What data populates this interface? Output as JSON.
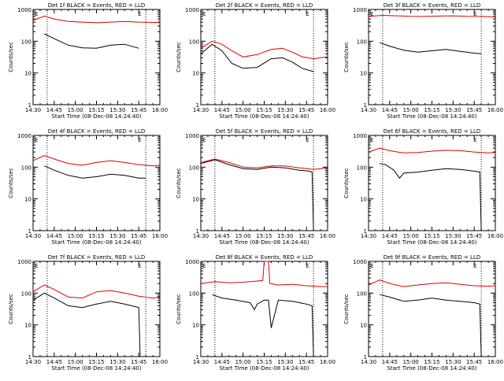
{
  "colors": {
    "events": "#000000",
    "lld": "#e00000",
    "background": "#ffffff"
  },
  "chart_data": [
    {
      "type": "line",
      "title": "Det 1f BLACK = Events, RED = LLD",
      "xlabel": "Start Time (08-Dec-08 14:24:40)",
      "ylabel": "Counts/sec",
      "yscale": "log",
      "ylim": [
        1,
        1000
      ],
      "xlim": [
        "14:30",
        "16:00"
      ],
      "x_ticks": [
        "14:30",
        "14:45",
        "15:00",
        "15:15",
        "15:30",
        "15:45",
        "16:00"
      ],
      "y_ticks": [
        "1",
        "10",
        "100",
        "1000"
      ],
      "markers": [
        "E",
        "E"
      ],
      "vlines": [
        "14:40",
        "15:50"
      ],
      "series": [
        {
          "name": "Events",
          "x": [
            "14:38",
            "14:45",
            "14:55",
            "15:05",
            "15:15",
            "15:25",
            "15:35",
            "15:45"
          ],
          "values": [
            170,
            120,
            75,
            62,
            60,
            75,
            80,
            60
          ]
        },
        {
          "name": "LLD",
          "x": [
            "14:30",
            "14:38",
            "14:45",
            "14:55",
            "15:05",
            "15:15",
            "15:25",
            "15:35",
            "15:45",
            "15:55",
            "16:00"
          ],
          "values": [
            450,
            620,
            500,
            420,
            400,
            380,
            400,
            420,
            400,
            390,
            390
          ]
        }
      ]
    },
    {
      "type": "line",
      "title": "Det 2f BLACK = Events, RED = LLD",
      "xlabel": "Start Time (08-Dec-08 14:24:40)",
      "ylabel": "Counts/sec",
      "yscale": "log",
      "ylim": [
        1,
        1000
      ],
      "xlim": [
        "14:30",
        "16:00"
      ],
      "x_ticks": [
        "14:30",
        "14:45",
        "15:00",
        "15:15",
        "15:30",
        "15:45",
        "16:00"
      ],
      "y_ticks": [
        "1",
        "10",
        "100",
        "1000"
      ],
      "markers": [
        "E",
        "E"
      ],
      "vlines": [
        "14:40",
        "15:50"
      ],
      "series": [
        {
          "name": "Events",
          "x": [
            "14:30",
            "14:38",
            "14:45",
            "14:52",
            "15:00",
            "15:10",
            "15:20",
            "15:28",
            "15:35",
            "15:42",
            "15:50"
          ],
          "values": [
            40,
            80,
            50,
            20,
            14,
            15,
            28,
            30,
            22,
            14,
            11
          ]
        },
        {
          "name": "LLD",
          "x": [
            "14:30",
            "14:38",
            "14:45",
            "14:52",
            "15:00",
            "15:10",
            "15:20",
            "15:28",
            "15:35",
            "15:42",
            "15:50",
            "16:00"
          ],
          "values": [
            60,
            100,
            80,
            50,
            32,
            38,
            55,
            60,
            45,
            32,
            28,
            32
          ]
        }
      ]
    },
    {
      "type": "line",
      "title": "Det 3f BLACK = Events, RED = LLD",
      "xlabel": "Start Time (08-Dec-08 14:24:40)",
      "ylabel": "Counts/sec",
      "yscale": "log",
      "ylim": [
        1,
        1000
      ],
      "xlim": [
        "14:30",
        "16:00"
      ],
      "x_ticks": [
        "14:30",
        "14:45",
        "15:00",
        "15:15",
        "15:30",
        "15:45",
        "16:00"
      ],
      "y_ticks": [
        "1",
        "10",
        "100",
        "1000"
      ],
      "markers": [
        "E",
        "E"
      ],
      "vlines": [
        "14:40",
        "15:50"
      ],
      "series": [
        {
          "name": "Events",
          "x": [
            "14:38",
            "14:45",
            "14:55",
            "15:05",
            "15:15",
            "15:25",
            "15:35",
            "15:45",
            "15:50"
          ],
          "values": [
            90,
            70,
            52,
            45,
            50,
            55,
            48,
            42,
            40
          ]
        },
        {
          "name": "LLD",
          "x": [
            "14:30",
            "14:40",
            "14:50",
            "15:00",
            "15:10",
            "15:20",
            "15:30",
            "15:40",
            "15:50",
            "16:00"
          ],
          "values": [
            600,
            650,
            630,
            610,
            600,
            620,
            630,
            610,
            600,
            580
          ]
        }
      ]
    },
    {
      "type": "line",
      "title": "Det 4f BLACK = Events, RED = LLD",
      "xlabel": "Start Time (08-Dec-08 14:24:40)",
      "ylabel": "Counts/sec",
      "yscale": "log",
      "ylim": [
        1,
        1000
      ],
      "xlim": [
        "14:30",
        "16:00"
      ],
      "x_ticks": [
        "14:30",
        "14:45",
        "15:00",
        "15:15",
        "15:30",
        "15:45",
        "16:00"
      ],
      "y_ticks": [
        "1",
        "10",
        "100",
        "1000"
      ],
      "markers": [
        "E",
        "E"
      ],
      "vlines": [
        "14:40",
        "15:50"
      ],
      "series": [
        {
          "name": "Events",
          "x": [
            "14:38",
            "14:45",
            "14:55",
            "15:05",
            "15:15",
            "15:25",
            "15:35",
            "15:45",
            "15:50"
          ],
          "values": [
            110,
            80,
            55,
            45,
            50,
            60,
            55,
            45,
            45
          ]
        },
        {
          "name": "LLD",
          "x": [
            "14:30",
            "14:38",
            "14:45",
            "14:55",
            "15:05",
            "15:15",
            "15:25",
            "15:35",
            "15:45",
            "15:55",
            "16:00"
          ],
          "values": [
            160,
            230,
            180,
            130,
            115,
            140,
            160,
            140,
            120,
            110,
            115
          ]
        }
      ]
    },
    {
      "type": "line",
      "title": "Det 5f BLACK = Events, RED = LLD",
      "xlabel": "Start Time (08-Dec-08 14:24:40)",
      "ylabel": "Counts/sec",
      "yscale": "log",
      "ylim": [
        1,
        1000
      ],
      "xlim": [
        "14:30",
        "16:00"
      ],
      "x_ticks": [
        "14:30",
        "14:45",
        "15:00",
        "15:15",
        "15:30",
        "15:45",
        "16:00"
      ],
      "y_ticks": [
        "1",
        "10",
        "100",
        "1000"
      ],
      "markers": [
        "E",
        "E"
      ],
      "vlines": [
        "14:40",
        "15:50"
      ],
      "series": [
        {
          "name": "Events",
          "x": [
            "14:30",
            "14:40",
            "14:50",
            "15:00",
            "15:10",
            "15:20",
            "15:30",
            "15:40",
            "15:47",
            "15:49",
            "15:50"
          ],
          "values": [
            130,
            170,
            120,
            90,
            85,
            100,
            95,
            80,
            75,
            70,
            1
          ]
        },
        {
          "name": "LLD",
          "x": [
            "14:30",
            "14:40",
            "14:50",
            "15:00",
            "15:10",
            "15:20",
            "15:30",
            "15:40",
            "15:50",
            "16:00"
          ],
          "values": [
            140,
            180,
            140,
            100,
            95,
            110,
            110,
            95,
            85,
            95
          ]
        }
      ]
    },
    {
      "type": "line",
      "title": "Det 6f BLACK = Events, RED = LLD",
      "xlabel": "Start Time (08-Dec-08 14:24:40)",
      "ylabel": "Counts/sec",
      "yscale": "log",
      "ylim": [
        1,
        1000
      ],
      "xlim": [
        "14:30",
        "16:00"
      ],
      "x_ticks": [
        "14:30",
        "14:45",
        "15:00",
        "15:15",
        "15:30",
        "15:45",
        "16:00"
      ],
      "y_ticks": [
        "1",
        "10",
        "100",
        "1000"
      ],
      "markers": [
        "E",
        "E"
      ],
      "vlines": [
        "14:40",
        "15:50"
      ],
      "series": [
        {
          "name": "Events",
          "x": [
            "14:38",
            "14:42",
            "14:48",
            "14:52",
            "14:55",
            "15:05",
            "15:15",
            "15:25",
            "15:35",
            "15:45",
            "15:49",
            "15:50"
          ],
          "values": [
            130,
            120,
            80,
            45,
            65,
            70,
            80,
            90,
            85,
            75,
            70,
            1
          ]
        },
        {
          "name": "LLD",
          "x": [
            "14:30",
            "14:38",
            "14:45",
            "14:55",
            "15:05",
            "15:15",
            "15:25",
            "15:35",
            "15:45",
            "15:55",
            "16:00"
          ],
          "values": [
            300,
            400,
            330,
            280,
            290,
            320,
            340,
            330,
            300,
            280,
            290
          ]
        }
      ]
    },
    {
      "type": "line",
      "title": "Det 7f BLACK = Events, RED = LLD",
      "xlabel": "Start Time (08-Dec-08 14:24:40)",
      "ylabel": "Counts/sec",
      "yscale": "log",
      "ylim": [
        1,
        1000
      ],
      "xlim": [
        "14:30",
        "16:00"
      ],
      "x_ticks": [
        "14:30",
        "14:45",
        "15:00",
        "15:15",
        "15:30",
        "15:45",
        "16:00"
      ],
      "y_ticks": [
        "1",
        "10",
        "100",
        "1000"
      ],
      "markers": [
        "E",
        "E"
      ],
      "vlines": [
        "14:40",
        "15:50"
      ],
      "series": [
        {
          "name": "Events",
          "x": [
            "14:30",
            "14:38",
            "14:45",
            "14:55",
            "15:05",
            "15:15",
            "15:25",
            "15:35",
            "15:45",
            "15:46",
            "15:47"
          ],
          "values": [
            60,
            100,
            70,
            40,
            35,
            45,
            55,
            45,
            35,
            1,
            1
          ]
        },
        {
          "name": "LLD",
          "x": [
            "14:30",
            "14:38",
            "14:45",
            "14:55",
            "15:05",
            "15:15",
            "15:25",
            "15:35",
            "15:45",
            "15:55",
            "16:00"
          ],
          "values": [
            110,
            180,
            130,
            75,
            70,
            110,
            120,
            100,
            80,
            70,
            75
          ]
        }
      ]
    },
    {
      "type": "line",
      "title": "Det 8f BLACK = Events, RED = LLD",
      "xlabel": "Start Time (08-Dec-08 14:24:40)",
      "ylabel": "Counts/sec",
      "yscale": "log",
      "ylim": [
        1,
        1000
      ],
      "xlim": [
        "14:30",
        "16:00"
      ],
      "x_ticks": [
        "14:30",
        "14:45",
        "15:00",
        "15:15",
        "15:30",
        "15:45",
        "16:00"
      ],
      "y_ticks": [
        "1",
        "10",
        "100",
        "1000"
      ],
      "markers": [
        "E",
        "E"
      ],
      "vlines": [
        "14:40",
        "15:50"
      ],
      "series": [
        {
          "name": "Events",
          "x": [
            "14:38",
            "14:45",
            "14:55",
            "15:05",
            "15:08",
            "15:10",
            "15:15",
            "15:18",
            "15:20",
            "15:25",
            "15:35",
            "15:45",
            "15:49",
            "15:50"
          ],
          "values": [
            90,
            70,
            60,
            50,
            30,
            45,
            60,
            60,
            8,
            60,
            55,
            45,
            40,
            1
          ]
        },
        {
          "name": "LLD",
          "x": [
            "14:30",
            "14:40",
            "14:50",
            "15:00",
            "15:10",
            "15:14",
            "15:15",
            "15:18",
            "15:19",
            "15:25",
            "15:35",
            "15:45",
            "15:55",
            "16:00"
          ],
          "values": [
            200,
            230,
            210,
            220,
            240,
            250,
            1000,
            1000,
            200,
            180,
            190,
            170,
            160,
            160
          ]
        }
      ]
    },
    {
      "type": "line",
      "title": "Det 9f BLACK = Events, RED = LLD",
      "xlabel": "Start Time (08-Dec-08 14:24:40)",
      "ylabel": "Counts/sec",
      "yscale": "log",
      "ylim": [
        1,
        1000
      ],
      "xlim": [
        "14:30",
        "16:00"
      ],
      "x_ticks": [
        "14:30",
        "14:45",
        "15:00",
        "15:15",
        "15:30",
        "15:45",
        "16:00"
      ],
      "y_ticks": [
        "1",
        "10",
        "100",
        "1000"
      ],
      "markers": [
        "E",
        "E"
      ],
      "vlines": [
        "14:40",
        "15:50"
      ],
      "series": [
        {
          "name": "Events",
          "x": [
            "14:38",
            "14:45",
            "14:55",
            "15:05",
            "15:15",
            "15:25",
            "15:35",
            "15:45",
            "15:49",
            "15:50"
          ],
          "values": [
            90,
            75,
            55,
            60,
            70,
            60,
            55,
            50,
            45,
            1
          ]
        },
        {
          "name": "LLD",
          "x": [
            "14:30",
            "14:38",
            "14:45",
            "14:55",
            "15:05",
            "15:15",
            "15:25",
            "15:35",
            "15:45",
            "15:55",
            "16:00"
          ],
          "values": [
            180,
            260,
            200,
            160,
            180,
            200,
            210,
            190,
            170,
            165,
            170
          ]
        }
      ]
    }
  ]
}
